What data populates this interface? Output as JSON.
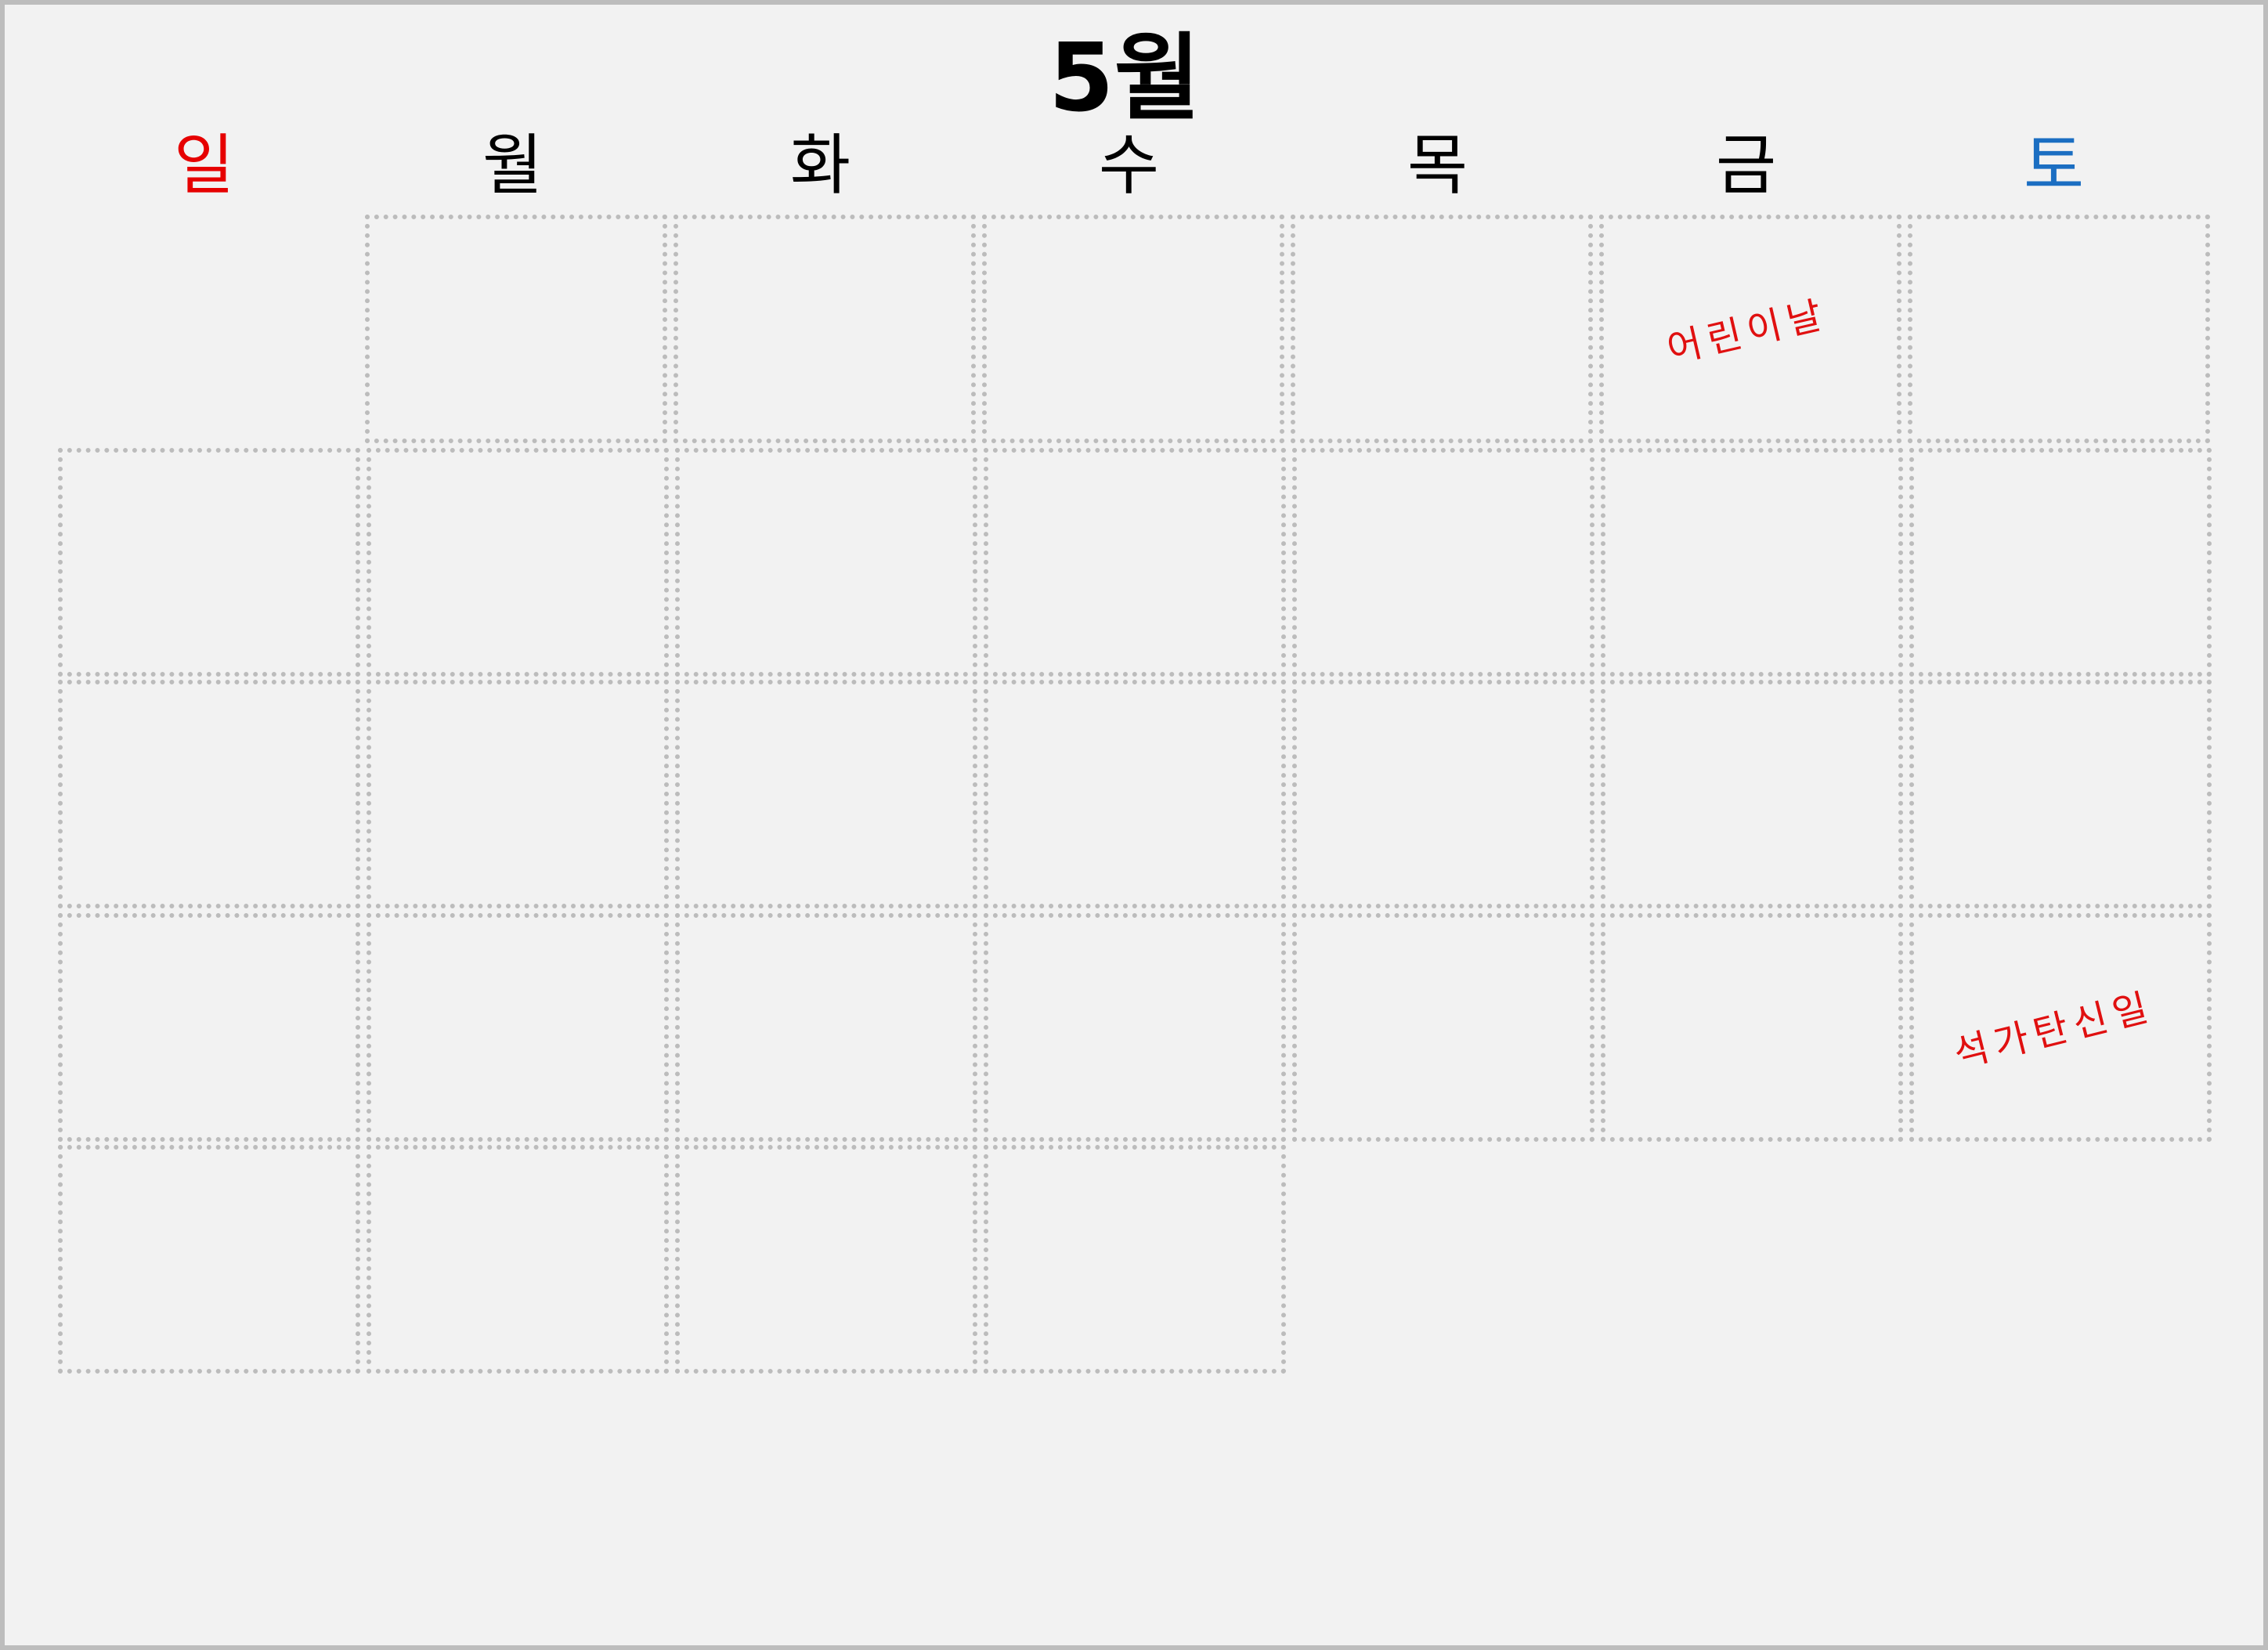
{
  "calendar": {
    "month_title": "5월",
    "weekdays": [
      "일",
      "월",
      "화",
      "수",
      "목",
      "금",
      "토"
    ],
    "colors": {
      "sunday": "#e60000",
      "saturday": "#1b6ec2",
      "holiday_note": "#e01010",
      "grid_border": "#bcbcbc",
      "background": "#f2f2f2"
    },
    "holidays": [
      {
        "label": "어린이날",
        "weekday": "금",
        "week": 1
      },
      {
        "label": "석가탄신일",
        "weekday": "토",
        "week": 4
      }
    ]
  }
}
